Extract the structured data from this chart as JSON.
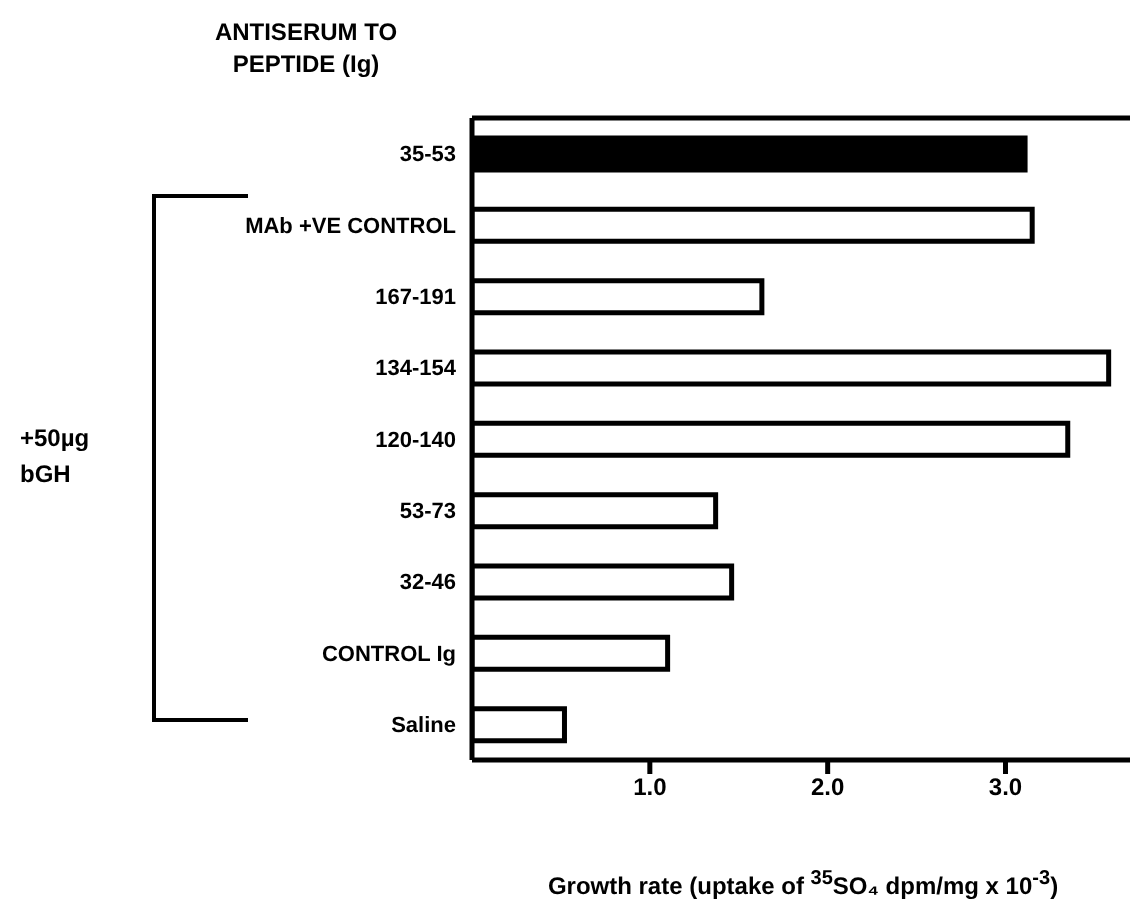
{
  "chart_data": {
    "type": "bar",
    "orientation": "horizontal",
    "ylabel": "ANTISERUM TO PEPTIDE (Ig)",
    "xlabel": "Growth rate (uptake of $^{35}$SO₄ dpm/mg x 10$^{-3}$)",
    "categories": [
      "35-53",
      "MAb +VE CONTROL",
      "167-191",
      "134-154",
      "120-140",
      "53-73",
      "32-46",
      "CONTROL Ig",
      "Saline"
    ],
    "values": [
      3.11,
      3.15,
      1.63,
      3.58,
      3.35,
      1.37,
      1.46,
      1.1,
      0.52
    ],
    "colors": [
      "#000000",
      "#ffffff",
      "#ffffff",
      "#ffffff",
      "#ffffff",
      "#ffffff",
      "#ffffff",
      "#ffffff",
      "#ffffff"
    ],
    "xlim": [
      0,
      3.7
    ],
    "xticks": [
      {
        "value": 1,
        "label": "1.0"
      },
      {
        "value": 2,
        "label": "2.0"
      },
      {
        "value": 3,
        "label": "3.0"
      }
    ],
    "annotations": [
      "+50µg bGH"
    ],
    "grid": false,
    "legend": false
  }
}
